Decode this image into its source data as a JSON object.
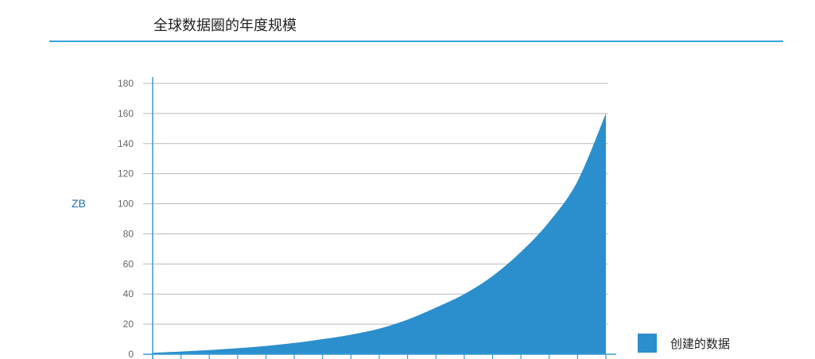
{
  "chart_data": {
    "type": "area",
    "title": "全球数据圈的年度规模",
    "xlabel": "",
    "ylabel": "ZB",
    "ylim": [
      0,
      180
    ],
    "yticks": [
      0,
      20,
      40,
      60,
      80,
      100,
      120,
      140,
      160,
      180
    ],
    "x": [
      0,
      1,
      2,
      3,
      4,
      5,
      6,
      7,
      8,
      9,
      10,
      11,
      12,
      13,
      14,
      15,
      16
    ],
    "grid": true,
    "legend_position": "bottom-right",
    "series": [
      {
        "name": "创建的数据",
        "color": "#2b8fce",
        "values": [
          1,
          1.8,
          2.8,
          4,
          5.5,
          7.5,
          10,
          13,
          17,
          23,
          31,
          40,
          52,
          68,
          88,
          115,
          160
        ]
      }
    ]
  }
}
